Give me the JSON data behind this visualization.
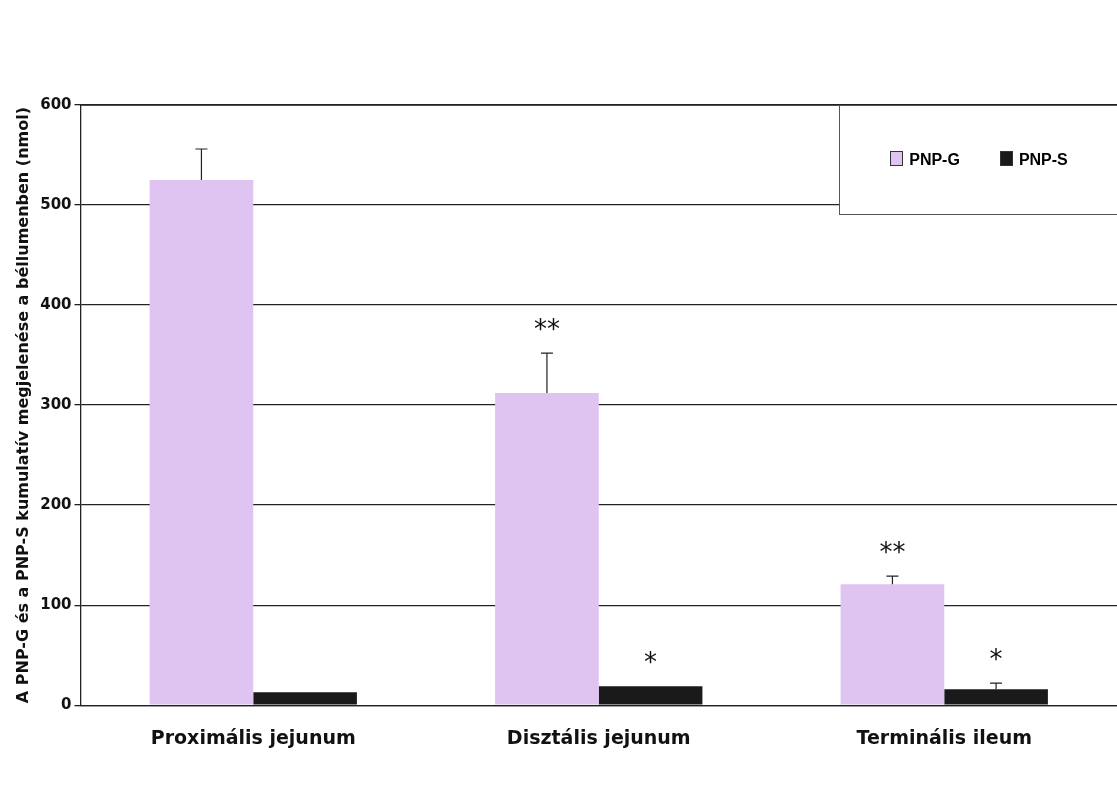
{
  "chart_data": {
    "type": "bar",
    "ylabel": "A PNP-G és a PNP-S kumulatív megjelenése a béllumenben (nmol)",
    "categories": [
      "Proximális jejunum",
      "Disztális jejunum",
      "Terminális ileum"
    ],
    "series": [
      {
        "name": "PNP-G",
        "color": "#dfc3f1",
        "values": [
          525,
          312,
          121
        ],
        "errors": [
          [
            525,
            556
          ],
          [
            312,
            352
          ],
          [
            121,
            129
          ]
        ]
      },
      {
        "name": "PNP-S",
        "color": "#1a1a1a",
        "values": [
          13,
          19,
          16
        ],
        "errors": [
          null,
          null,
          [
            16,
            22
          ]
        ]
      }
    ],
    "ylim": [
      0,
      600
    ],
    "yticks": [
      0,
      100,
      200,
      300,
      400,
      500,
      600
    ],
    "grid": "y",
    "legend": "top right",
    "annotations": [
      {
        "text": "**",
        "x": "Disztális jejunum",
        "y": 312
      },
      {
        "text": "*",
        "x": "Disztális jejunum",
        "y": 19
      },
      {
        "text": "**",
        "x": "Terminális ileum",
        "y": 121
      },
      {
        "text": "*",
        "x": "Terminális ileum",
        "y": 16
      }
    ]
  }
}
